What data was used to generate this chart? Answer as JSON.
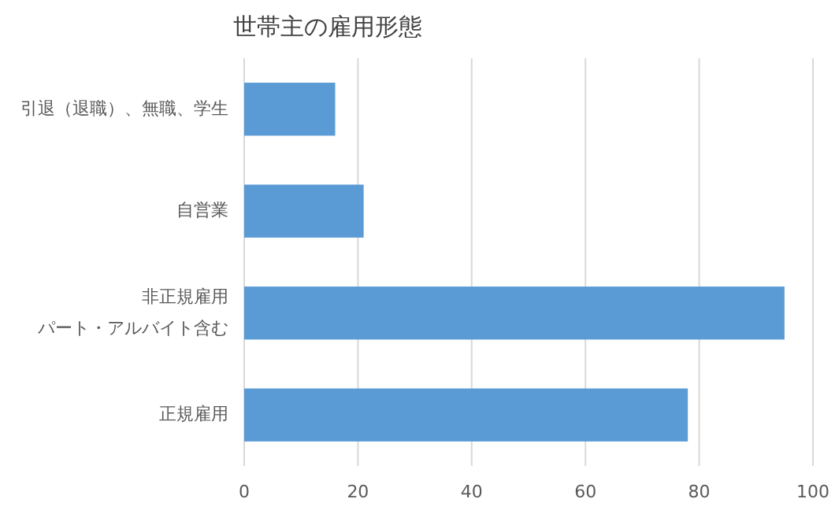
{
  "chart_data": {
    "type": "bar",
    "orientation": "horizontal",
    "title": "世帯主の雇用形態",
    "categories": [
      "引退（退職）、無職、学生",
      "自営業",
      "非正規雇用パート・アルバイト含む",
      "正規雇用"
    ],
    "values": [
      16,
      21,
      95,
      78
    ],
    "color": "#5b9bd5",
    "xlim": [
      0,
      100
    ],
    "xticks": [
      0,
      20,
      40,
      60,
      80,
      100
    ],
    "grid": "x"
  }
}
